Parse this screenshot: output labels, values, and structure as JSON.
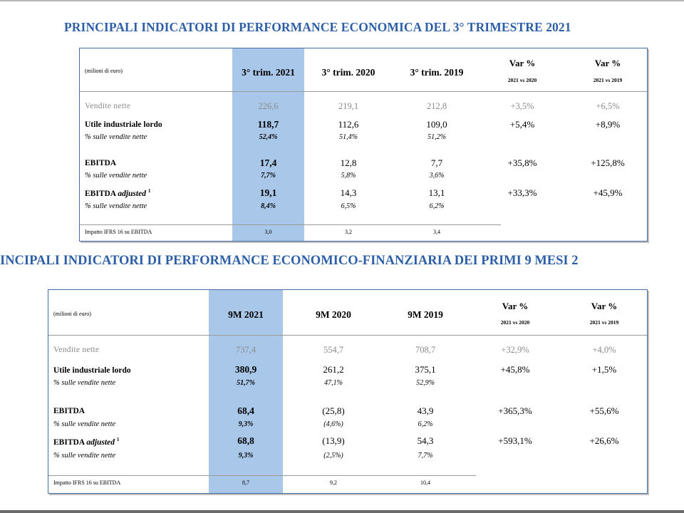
{
  "q3": {
    "title": "PRINCIPALI INDICATORI DI PERFORMANCE ECONOMICA DEL 3° TRIMESTRE 2021",
    "units": "(milioni di euro)",
    "columns": [
      "3° trim. 2021",
      "3° trim. 2020",
      "3° trim. 2019"
    ],
    "var_headers": [
      {
        "label": "Var %",
        "sub": "2021 vs 2020"
      },
      {
        "label": "Var %",
        "sub": "2021 vs 2019"
      }
    ],
    "rows": {
      "vendite": {
        "label": "Vendite nette",
        "values": [
          "226,6",
          "219,1",
          "212,8"
        ],
        "vars": [
          "+3,5%",
          "+6,5%"
        ]
      },
      "utile": {
        "label": "Utile industriale lordo",
        "values": [
          "118,7",
          "112,6",
          "109,0"
        ],
        "vars": [
          "+5,4%",
          "+8,9%"
        ]
      },
      "utile_pct": {
        "label": "% sulle vendite nette",
        "values": [
          "52,4%",
          "51,4%",
          "51,2%"
        ]
      },
      "ebitda": {
        "label": "EBITDA",
        "values": [
          "17,4",
          "12,8",
          "7,7"
        ],
        "vars": [
          "+35,8%",
          "+125,8%"
        ]
      },
      "ebitda_pct": {
        "label": "% sulle vendite nette",
        "values": [
          "7,7%",
          "5,8%",
          "3,6%"
        ]
      },
      "adj": {
        "label_main": "EBITDA",
        "label_italic": "adjusted",
        "sup": "1",
        "values": [
          "19,1",
          "14,3",
          "13,1"
        ],
        "vars": [
          "+33,3%",
          "+45,9%"
        ]
      },
      "adj_pct": {
        "label": "% sulle vendite nette",
        "values": [
          "8,4%",
          "6,5%",
          "6,2%"
        ]
      },
      "ifrs": {
        "label": "Impatto IFRS 16 su EBITDA",
        "values": [
          "3,0",
          "3,2",
          "3,4"
        ]
      }
    }
  },
  "m9": {
    "title": "INCIPALI INDICATORI DI PERFORMANCE ECONOMICO-FINANZIARIA DEI PRIMI 9 MESI 2",
    "units": "(milioni di euro)",
    "columns": [
      "9M 2021",
      "9M 2020",
      "9M 2019"
    ],
    "var_headers": [
      {
        "label": "Var %",
        "sub": "2021 vs 2020"
      },
      {
        "label": "Var %",
        "sub": "2021 vs 2019"
      }
    ],
    "rows": {
      "vendite": {
        "label": "Vendite nette",
        "values": [
          "737,4",
          "554,7",
          "708,7"
        ],
        "vars": [
          "+32,9%",
          "+4,0%"
        ]
      },
      "utile": {
        "label": "Utile industriale lordo",
        "values": [
          "380,9",
          "261,2",
          "375,1"
        ],
        "vars": [
          "+45,8%",
          "+1,5%"
        ]
      },
      "utile_pct": {
        "label": "% sulle vendite nette",
        "values": [
          "51,7%",
          "47,1%",
          "52,9%"
        ]
      },
      "ebitda": {
        "label": "EBITDA",
        "values": [
          "68,4",
          "(25,8)",
          "43,9"
        ],
        "vars": [
          "+365,3%",
          "+55,6%"
        ]
      },
      "ebitda_pct": {
        "label": "% sulle vendite nette",
        "values": [
          "9,3%",
          "(4,6%)",
          "6,2%"
        ]
      },
      "adj": {
        "label_main": "EBITDA",
        "label_italic": "adjusted",
        "sup": "1",
        "values": [
          "68,8",
          "(13,9)",
          "54,3"
        ],
        "vars": [
          "+593,1%",
          "+26,6%"
        ]
      },
      "adj_pct": {
        "label": "% sulle vendite nette",
        "values": [
          "9,3%",
          "(2,5%)",
          "7,7%"
        ]
      },
      "ifrs": {
        "label": "Impatto IFRS 16 su EBITDA",
        "values": [
          "8,7",
          "9,2",
          "10,4"
        ]
      }
    }
  },
  "colors": {
    "title": "#2d5fa8",
    "highlight": "#a8c7e9",
    "border": "#4a6ea3",
    "muted": "#8a8a8a"
  }
}
